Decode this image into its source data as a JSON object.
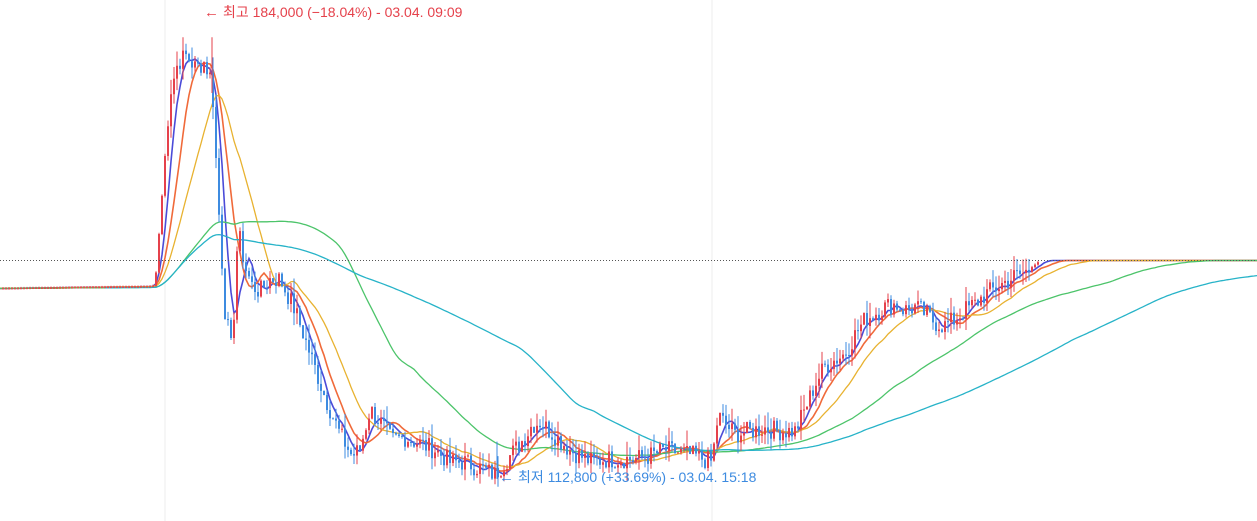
{
  "chart_data": {
    "type": "candlestick",
    "interval": "1-minute",
    "date": "03.04.",
    "session_dividers": [
      "09:00",
      "15:00"
    ],
    "reference_line": {
      "value": 148000,
      "style": "dotted"
    },
    "y_range": [
      106000,
      190000
    ],
    "annotations": {
      "high": {
        "arrow": "←",
        "text": "최고 184,000 (−18.04%) - 03.04. 09:09",
        "value": 184000,
        "time": "09:09"
      },
      "low": {
        "arrow": "←",
        "text": "최저 112,800 (+33.69%) - 03.04. 15:18",
        "value": 112800,
        "time": "15:18"
      }
    },
    "colors": {
      "up": "#e5414b",
      "down": "#3d8be0",
      "ma5": "#4b4bd8",
      "ma10": "#f06a3a",
      "ma20": "#e8b230",
      "ma60": "#4cc46a",
      "ma120": "#27b3c8",
      "reference": "#555555",
      "divider": "#eeeeee"
    },
    "grid": false,
    "legend": "none",
    "price_path": [
      [
        0,
        143500
      ],
      [
        150,
        143800
      ],
      [
        155,
        144000
      ],
      [
        170,
        175000
      ],
      [
        178,
        180000
      ],
      [
        186,
        181000
      ],
      [
        196,
        179000
      ],
      [
        204,
        180000
      ],
      [
        212,
        177000
      ],
      [
        218,
        158000
      ],
      [
        225,
        140000
      ],
      [
        232,
        133000
      ],
      [
        238,
        153000
      ],
      [
        245,
        147000
      ],
      [
        252,
        144000
      ],
      [
        260,
        143000
      ],
      [
        270,
        145000
      ],
      [
        280,
        145000
      ],
      [
        295,
        140000
      ],
      [
        310,
        133000
      ],
      [
        325,
        126000
      ],
      [
        340,
        120000
      ],
      [
        352,
        116500
      ],
      [
        360,
        117500
      ],
      [
        370,
        124000
      ],
      [
        380,
        122000
      ],
      [
        392,
        119000
      ],
      [
        405,
        119500
      ],
      [
        420,
        118500
      ],
      [
        435,
        117500
      ],
      [
        450,
        115500
      ],
      [
        465,
        115500
      ],
      [
        480,
        114500
      ],
      [
        495,
        113500
      ],
      [
        505,
        115500
      ],
      [
        515,
        117500
      ],
      [
        525,
        119500
      ],
      [
        532,
        121500
      ],
      [
        540,
        122000
      ],
      [
        550,
        120500
      ],
      [
        560,
        119000
      ],
      [
        570,
        117500
      ],
      [
        580,
        116500
      ],
      [
        592,
        115500
      ],
      [
        605,
        116000
      ],
      [
        620,
        116000
      ],
      [
        635,
        116000
      ],
      [
        650,
        116500
      ],
      [
        665,
        117500
      ],
      [
        680,
        117000
      ],
      [
        695,
        116500
      ],
      [
        712,
        115500
      ],
      [
        718,
        123000
      ],
      [
        726,
        121500
      ],
      [
        735,
        120000
      ],
      [
        750,
        120500
      ],
      [
        765,
        121000
      ],
      [
        780,
        120500
      ],
      [
        795,
        120500
      ],
      [
        805,
        124000
      ],
      [
        815,
        128000
      ],
      [
        825,
        131000
      ],
      [
        835,
        132000
      ],
      [
        845,
        133000
      ],
      [
        855,
        136000
      ],
      [
        865,
        138500
      ],
      [
        875,
        139500
      ],
      [
        885,
        140500
      ],
      [
        895,
        141000
      ],
      [
        905,
        140000
      ],
      [
        915,
        140500
      ],
      [
        925,
        139500
      ],
      [
        935,
        138000
      ],
      [
        945,
        137500
      ],
      [
        955,
        138500
      ],
      [
        965,
        140000
      ],
      [
        975,
        141000
      ],
      [
        985,
        142500
      ],
      [
        995,
        143500
      ],
      [
        1005,
        144500
      ],
      [
        1015,
        145500
      ],
      [
        1025,
        146000
      ],
      [
        1040,
        148000
      ],
      [
        1257,
        148000
      ]
    ]
  }
}
